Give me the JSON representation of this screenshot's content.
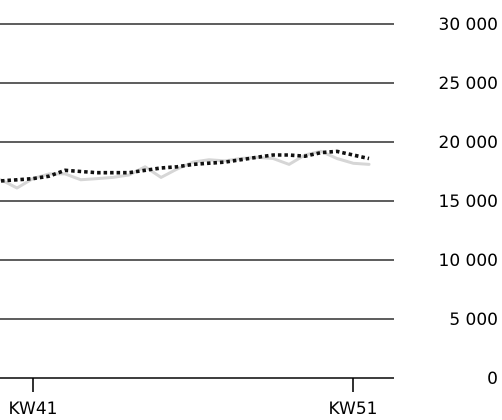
{
  "chart_data": {
    "type": "line",
    "title": "",
    "xlabel": "",
    "ylabel": "",
    "ylim": [
      0,
      30000
    ],
    "yticks": [
      0,
      5000,
      10000,
      15000,
      20000,
      25000,
      30000
    ],
    "ytick_labels": [
      "0",
      "5 000",
      "10 000",
      "15 000",
      "20 000",
      "25 000",
      "30 000"
    ],
    "yaxis_position": "right",
    "grid": "horizontal",
    "x_start_week": 40,
    "x_end_week": 52,
    "xticks": [
      {
        "week": 41,
        "label": "KW41"
      },
      {
        "week": 51,
        "label": "KW51"
      }
    ],
    "x": [
      40,
      40.5,
      41,
      41.5,
      42,
      42.5,
      43,
      43.5,
      44,
      44.5,
      45,
      45.5,
      46,
      46.5,
      47,
      47.5,
      48,
      48.5,
      49,
      49.5,
      50,
      50.5,
      51,
      51.5
    ],
    "series": [
      {
        "style": "solid",
        "color": "#d6d6d6",
        "values": [
          16800,
          16100,
          16900,
          17300,
          17300,
          16800,
          16900,
          17000,
          17200,
          17900,
          17000,
          17700,
          18300,
          18500,
          18400,
          18600,
          18700,
          18600,
          18100,
          18900,
          19200,
          18600,
          18200,
          18100
        ]
      },
      {
        "style": "dotted",
        "color": "#111111",
        "values": [
          16700,
          16800,
          16900,
          17100,
          17600,
          17500,
          17400,
          17400,
          17400,
          17600,
          17800,
          17900,
          18100,
          18200,
          18300,
          18500,
          18700,
          18900,
          18900,
          18800,
          19100,
          19200,
          18900,
          18600
        ]
      }
    ]
  }
}
